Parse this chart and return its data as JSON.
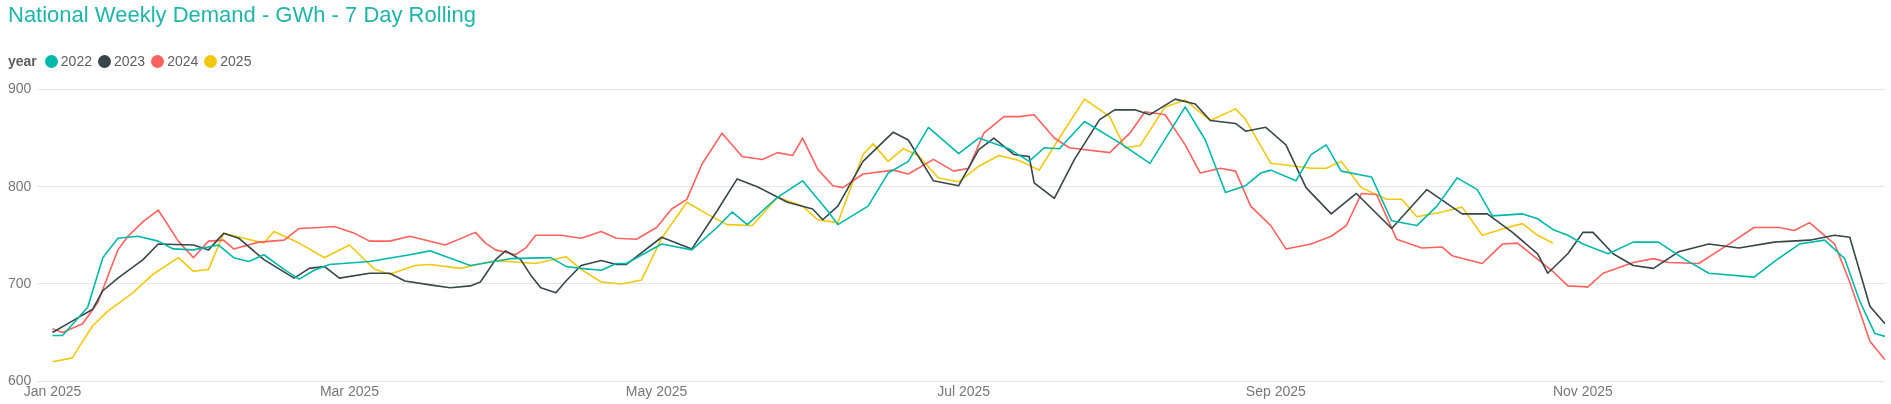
{
  "chart_data": {
    "type": "line",
    "title": "National Weekly Demand - GWh - 7 Day Rolling",
    "legend_title": "year",
    "legend": "top left",
    "grid": "y",
    "marker": "none",
    "line_style": "solid",
    "xlim": [
      "2024-12-29",
      "2025-12-31"
    ],
    "xticks": [
      {
        "value": "2025-01-01",
        "label": "Jan 2025"
      },
      {
        "value": "2025-03-01",
        "label": "Mar 2025"
      },
      {
        "value": "2025-05-01",
        "label": "May 2025"
      },
      {
        "value": "2025-07-01",
        "label": "Jul 2025"
      },
      {
        "value": "2025-09-01",
        "label": "Sep 2025"
      },
      {
        "value": "2025-11-01",
        "label": "Nov 2025"
      }
    ],
    "ylim": [
      600,
      900
    ],
    "yticks": [
      600,
      700,
      800,
      900
    ],
    "series": [
      {
        "name": "2022",
        "color": "#01b8aa",
        "x": [
          "2025-01-01",
          "2025-01-03",
          "2025-01-08",
          "2025-01-11",
          "2025-01-14",
          "2025-01-18",
          "2025-01-22",
          "2025-01-25",
          "2025-01-29",
          "2025-02-03",
          "2025-02-06",
          "2025-02-09",
          "2025-02-12",
          "2025-02-16",
          "2025-02-19",
          "2025-02-22",
          "2025-02-25",
          "2025-03-05",
          "2025-03-13",
          "2025-03-17",
          "2025-03-25",
          "2025-04-02",
          "2025-04-10",
          "2025-04-13",
          "2025-04-16",
          "2025-04-20",
          "2025-04-23",
          "2025-04-25",
          "2025-05-02",
          "2025-05-08",
          "2025-05-13",
          "2025-05-16",
          "2025-05-19",
          "2025-05-25",
          "2025-05-30",
          "2025-06-04",
          "2025-06-06",
          "2025-06-12",
          "2025-06-16",
          "2025-06-20",
          "2025-06-24",
          "2025-06-30",
          "2025-07-04",
          "2025-07-10",
          "2025-07-14",
          "2025-07-17",
          "2025-07-20",
          "2025-07-25",
          "2025-08-01",
          "2025-08-07",
          "2025-08-14",
          "2025-08-18",
          "2025-08-22",
          "2025-08-26",
          "2025-08-29",
          "2025-08-31",
          "2025-09-05",
          "2025-09-08",
          "2025-09-11",
          "2025-09-14",
          "2025-09-20",
          "2025-09-24",
          "2025-09-29",
          "2025-10-03",
          "2025-10-07",
          "2025-10-11",
          "2025-10-14",
          "2025-10-20",
          "2025-10-23",
          "2025-10-26",
          "2025-10-29",
          "2025-11-01",
          "2025-11-06",
          "2025-11-11",
          "2025-11-16",
          "2025-11-21",
          "2025-11-26",
          "2025-12-05",
          "2025-12-09",
          "2025-12-14",
          "2025-12-19",
          "2025-12-23",
          "2025-12-26",
          "2025-12-29",
          "2025-12-31"
        ],
        "values": [
          647,
          647,
          676,
          727,
          747,
          749,
          744,
          736,
          735,
          740,
          727,
          723,
          730,
          715,
          705,
          714,
          720,
          723,
          730,
          734,
          719,
          726,
          727,
          718,
          716,
          714,
          721,
          721,
          741,
          735,
          758,
          774,
          761,
          789,
          806,
          775,
          761,
          780,
          814,
          826,
          861,
          834,
          850,
          839,
          826,
          840,
          839,
          867,
          845,
          824,
          882,
          848,
          794,
          801,
          814,
          817,
          806,
          833,
          843,
          816,
          810,
          765,
          760,
          780,
          809,
          797,
          770,
          772,
          767,
          756,
          750,
          741,
          731,
          743,
          743,
          726,
          711,
          707,
          723,
          741,
          745,
          726,
          682,
          649,
          646
        ]
      },
      {
        "name": "2023",
        "color": "#374649",
        "x": [
          "2025-01-01",
          "2025-01-05",
          "2025-01-09",
          "2025-01-11",
          "2025-01-14",
          "2025-01-19",
          "2025-01-22",
          "2025-01-29",
          "2025-02-01",
          "2025-02-04",
          "2025-02-07",
          "2025-02-12",
          "2025-02-18",
          "2025-02-21",
          "2025-02-24",
          "2025-02-27",
          "2025-03-05",
          "2025-03-09",
          "2025-03-12",
          "2025-03-17",
          "2025-03-21",
          "2025-03-25",
          "2025-03-27",
          "2025-03-30",
          "2025-04-01",
          "2025-04-04",
          "2025-04-06",
          "2025-04-08",
          "2025-04-11",
          "2025-04-13",
          "2025-04-16",
          "2025-04-20",
          "2025-04-23",
          "2025-04-25",
          "2025-05-02",
          "2025-05-08",
          "2025-05-13",
          "2025-05-17",
          "2025-05-21",
          "2025-05-27",
          "2025-06-01",
          "2025-06-03",
          "2025-06-06",
          "2025-06-11",
          "2025-06-17",
          "2025-06-20",
          "2025-06-25",
          "2025-06-30",
          "2025-07-04",
          "2025-07-07",
          "2025-07-11",
          "2025-07-14",
          "2025-07-15",
          "2025-07-19",
          "2025-07-23",
          "2025-07-28",
          "2025-07-31",
          "2025-08-04",
          "2025-08-07",
          "2025-08-12",
          "2025-08-16",
          "2025-08-19",
          "2025-08-24",
          "2025-08-26",
          "2025-08-30",
          "2025-09-03",
          "2025-09-07",
          "2025-09-12",
          "2025-09-17",
          "2025-09-24",
          "2025-10-01",
          "2025-10-08",
          "2025-10-13",
          "2025-10-18",
          "2025-10-23",
          "2025-10-25",
          "2025-10-29",
          "2025-11-01",
          "2025-11-03",
          "2025-11-07",
          "2025-11-11",
          "2025-11-15",
          "2025-11-20",
          "2025-11-26",
          "2025-12-02",
          "2025-12-09",
          "2025-12-16",
          "2025-12-21",
          "2025-12-24",
          "2025-12-28",
          "2025-12-31"
        ],
        "values": [
          650,
          662,
          674,
          693,
          706,
          725,
          741,
          740,
          735,
          752,
          747,
          725,
          706,
          716,
          718,
          706,
          711,
          711,
          703,
          699,
          696,
          698,
          702,
          725,
          734,
          725,
          709,
          696,
          691,
          703,
          719,
          724,
          720,
          720,
          748,
          736,
          775,
          808,
          800,
          784,
          777,
          766,
          780,
          826,
          856,
          848,
          806,
          801,
          838,
          850,
          833,
          831,
          804,
          788,
          828,
          869,
          879,
          879,
          874,
          890,
          885,
          868,
          865,
          857,
          861,
          843,
          799,
          772,
          793,
          757,
          797,
          772,
          772,
          753,
          731,
          711,
          731,
          753,
          753,
          731,
          719,
          716,
          733,
          741,
          737,
          743,
          745,
          750,
          748,
          677,
          659
        ]
      },
      {
        "name": "2024",
        "color": "#fd625e",
        "x": [
          "2025-01-01",
          "2025-01-03",
          "2025-01-07",
          "2025-01-10",
          "2025-01-14",
          "2025-01-16",
          "2025-01-19",
          "2025-01-22",
          "2025-01-26",
          "2025-01-29",
          "2025-02-01",
          "2025-02-04",
          "2025-02-06",
          "2025-02-11",
          "2025-02-16",
          "2025-02-19",
          "2025-02-23",
          "2025-02-26",
          "2025-03-02",
          "2025-03-05",
          "2025-03-09",
          "2025-03-13",
          "2025-03-20",
          "2025-03-26",
          "2025-03-28",
          "2025-03-30",
          "2025-04-03",
          "2025-04-05",
          "2025-04-07",
          "2025-04-12",
          "2025-04-16",
          "2025-04-20",
          "2025-04-23",
          "2025-04-27",
          "2025-05-01",
          "2025-05-04",
          "2025-05-07",
          "2025-05-10",
          "2025-05-14",
          "2025-05-18",
          "2025-05-22",
          "2025-05-25",
          "2025-05-28",
          "2025-05-30",
          "2025-06-02",
          "2025-06-05",
          "2025-06-07",
          "2025-06-11",
          "2025-06-17",
          "2025-06-20",
          "2025-06-25",
          "2025-06-29",
          "2025-07-02",
          "2025-07-05",
          "2025-07-09",
          "2025-07-12",
          "2025-07-15",
          "2025-07-19",
          "2025-07-22",
          "2025-07-30",
          "2025-08-03",
          "2025-08-06",
          "2025-08-10",
          "2025-08-14",
          "2025-08-17",
          "2025-08-21",
          "2025-08-24",
          "2025-08-27",
          "2025-08-31",
          "2025-09-03",
          "2025-09-08",
          "2025-09-12",
          "2025-09-15",
          "2025-09-18",
          "2025-09-21",
          "2025-09-25",
          "2025-09-30",
          "2025-10-04",
          "2025-10-06",
          "2025-10-12",
          "2025-10-16",
          "2025-10-19",
          "2025-10-26",
          "2025-10-29",
          "2025-11-02",
          "2025-11-05",
          "2025-11-11",
          "2025-11-15",
          "2025-11-18",
          "2025-11-24",
          "2025-11-30",
          "2025-12-05",
          "2025-12-10",
          "2025-12-13",
          "2025-12-16",
          "2025-12-21",
          "2025-12-24",
          "2025-12-28",
          "2025-12-31"
        ],
        "values": [
          654,
          650,
          659,
          681,
          735,
          749,
          764,
          776,
          744,
          727,
          744,
          745,
          736,
          743,
          745,
          757,
          758,
          759,
          752,
          744,
          744,
          749,
          740,
          753,
          742,
          735,
          730,
          737,
          750,
          750,
          747,
          754,
          747,
          746,
          758,
          777,
          787,
          823,
          855,
          831,
          828,
          835,
          832,
          850,
          818,
          801,
          799,
          813,
          817,
          813,
          828,
          816,
          819,
          855,
          872,
          872,
          874,
          850,
          840,
          835,
          855,
          877,
          874,
          843,
          814,
          819,
          816,
          780,
          760,
          736,
          741,
          749,
          760,
          793,
          792,
          746,
          737,
          738,
          729,
          721,
          741,
          742,
          713,
          698,
          697,
          711,
          722,
          726,
          722,
          721,
          741,
          758,
          758,
          755,
          763,
          741,
          702,
          641,
          622
        ]
      },
      {
        "name": "2025",
        "color": "#f2c80f",
        "x": [
          "2025-01-01",
          "2025-01-05",
          "2025-01-06",
          "2025-01-09",
          "2025-01-12",
          "2025-01-17",
          "2025-01-21",
          "2025-01-26",
          "2025-01-29",
          "2025-02-01",
          "2025-02-04",
          "2025-02-08",
          "2025-02-12",
          "2025-02-14",
          "2025-02-19",
          "2025-02-24",
          "2025-03-01",
          "2025-03-03",
          "2025-03-06",
          "2025-03-09",
          "2025-03-14",
          "2025-03-17",
          "2025-03-23",
          "2025-03-30",
          "2025-04-07",
          "2025-04-13",
          "2025-04-16",
          "2025-04-20",
          "2025-04-24",
          "2025-04-28",
          "2025-05-02",
          "2025-05-07",
          "2025-05-11",
          "2025-05-15",
          "2025-05-20",
          "2025-05-25",
          "2025-05-30",
          "2025-06-02",
          "2025-06-06",
          "2025-06-11",
          "2025-06-13",
          "2025-06-16",
          "2025-06-19",
          "2025-06-22",
          "2025-06-26",
          "2025-06-30",
          "2025-07-04",
          "2025-07-08",
          "2025-07-12",
          "2025-07-16",
          "2025-07-20",
          "2025-07-25",
          "2025-07-30",
          "2025-08-02",
          "2025-08-05",
          "2025-08-10",
          "2025-08-14",
          "2025-08-19",
          "2025-08-24",
          "2025-08-26",
          "2025-08-31",
          "2025-09-05",
          "2025-09-08",
          "2025-09-11",
          "2025-09-14",
          "2025-09-18",
          "2025-09-23",
          "2025-09-26",
          "2025-09-29",
          "2025-10-04",
          "2025-10-08",
          "2025-10-12",
          "2025-10-17",
          "2025-10-20",
          "2025-10-23",
          "2025-10-26"
        ],
        "values": [
          620,
          624,
          633,
          657,
          672,
          691,
          710,
          727,
          713,
          715,
          752,
          747,
          742,
          754,
          742,
          727,
          740,
          730,
          715,
          710,
          719,
          720,
          716,
          724,
          721,
          728,
          715,
          702,
          700,
          704,
          747,
          784,
          772,
          761,
          760,
          789,
          780,
          766,
          763,
          833,
          844,
          826,
          839,
          832,
          809,
          805,
          821,
          832,
          827,
          817,
          850,
          890,
          872,
          840,
          842,
          882,
          889,
          868,
          880,
          869,
          824,
          821,
          819,
          819,
          826,
          799,
          787,
          787,
          769,
          774,
          779,
          750,
          758,
          762,
          750,
          742
        ]
      }
    ]
  }
}
